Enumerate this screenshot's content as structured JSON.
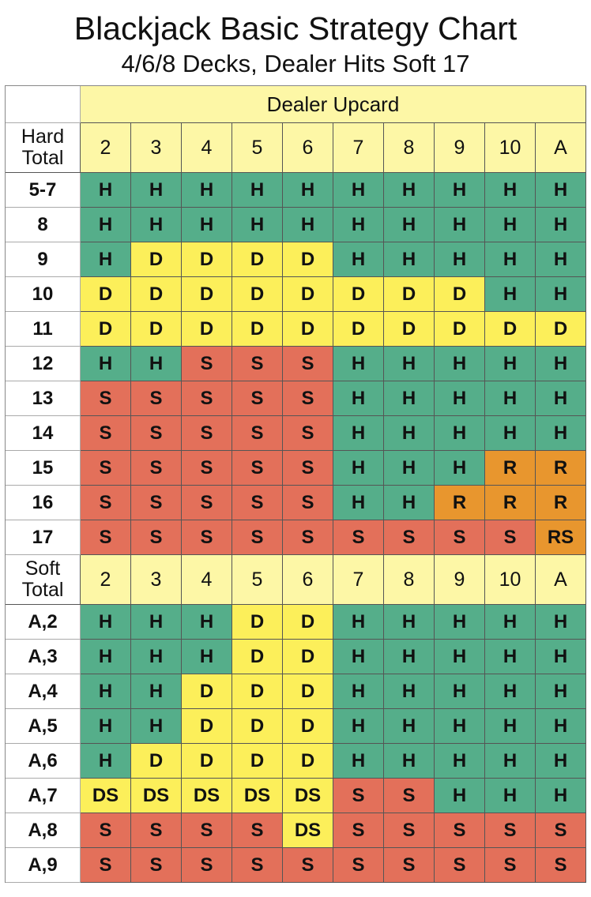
{
  "title": "Blackjack Basic Strategy Chart",
  "subtitle": "4/6/8 Decks, Dealer Hits Soft 17",
  "colors": {
    "H": "#55ae8a",
    "D": "#fcef5a",
    "S": "#e3705a",
    "R": "#e8962e",
    "RS": "#e8962e",
    "DS": "#fcef5a",
    "header": "#fdf7a6"
  },
  "chart_data": {
    "type": "table",
    "column_header": "Dealer Upcard",
    "upcards": [
      "2",
      "3",
      "4",
      "5",
      "6",
      "7",
      "8",
      "9",
      "10",
      "A"
    ],
    "sections": [
      {
        "label": "Hard Total",
        "rows": [
          {
            "hand": "5-7",
            "actions": [
              "H",
              "H",
              "H",
              "H",
              "H",
              "H",
              "H",
              "H",
              "H",
              "H"
            ]
          },
          {
            "hand": "8",
            "actions": [
              "H",
              "H",
              "H",
              "H",
              "H",
              "H",
              "H",
              "H",
              "H",
              "H"
            ]
          },
          {
            "hand": "9",
            "actions": [
              "H",
              "D",
              "D",
              "D",
              "D",
              "H",
              "H",
              "H",
              "H",
              "H"
            ]
          },
          {
            "hand": "10",
            "actions": [
              "D",
              "D",
              "D",
              "D",
              "D",
              "D",
              "D",
              "D",
              "H",
              "H"
            ]
          },
          {
            "hand": "11",
            "actions": [
              "D",
              "D",
              "D",
              "D",
              "D",
              "D",
              "D",
              "D",
              "D",
              "D"
            ]
          },
          {
            "hand": "12",
            "actions": [
              "H",
              "H",
              "S",
              "S",
              "S",
              "H",
              "H",
              "H",
              "H",
              "H"
            ]
          },
          {
            "hand": "13",
            "actions": [
              "S",
              "S",
              "S",
              "S",
              "S",
              "H",
              "H",
              "H",
              "H",
              "H"
            ]
          },
          {
            "hand": "14",
            "actions": [
              "S",
              "S",
              "S",
              "S",
              "S",
              "H",
              "H",
              "H",
              "H",
              "H"
            ]
          },
          {
            "hand": "15",
            "actions": [
              "S",
              "S",
              "S",
              "S",
              "S",
              "H",
              "H",
              "H",
              "R",
              "R"
            ]
          },
          {
            "hand": "16",
            "actions": [
              "S",
              "S",
              "S",
              "S",
              "S",
              "H",
              "H",
              "R",
              "R",
              "R"
            ]
          },
          {
            "hand": "17",
            "actions": [
              "S",
              "S",
              "S",
              "S",
              "S",
              "S",
              "S",
              "S",
              "S",
              "RS"
            ]
          }
        ]
      },
      {
        "label": "Soft Total",
        "rows": [
          {
            "hand": "A,2",
            "actions": [
              "H",
              "H",
              "H",
              "D",
              "D",
              "H",
              "H",
              "H",
              "H",
              "H"
            ]
          },
          {
            "hand": "A,3",
            "actions": [
              "H",
              "H",
              "H",
              "D",
              "D",
              "H",
              "H",
              "H",
              "H",
              "H"
            ]
          },
          {
            "hand": "A,4",
            "actions": [
              "H",
              "H",
              "D",
              "D",
              "D",
              "H",
              "H",
              "H",
              "H",
              "H"
            ]
          },
          {
            "hand": "A,5",
            "actions": [
              "H",
              "H",
              "D",
              "D",
              "D",
              "H",
              "H",
              "H",
              "H",
              "H"
            ]
          },
          {
            "hand": "A,6",
            "actions": [
              "H",
              "D",
              "D",
              "D",
              "D",
              "H",
              "H",
              "H",
              "H",
              "H"
            ]
          },
          {
            "hand": "A,7",
            "actions": [
              "DS",
              "DS",
              "DS",
              "DS",
              "DS",
              "S",
              "S",
              "H",
              "H",
              "H"
            ]
          },
          {
            "hand": "A,8",
            "actions": [
              "S",
              "S",
              "S",
              "S",
              "DS",
              "S",
              "S",
              "S",
              "S",
              "S"
            ]
          },
          {
            "hand": "A,9",
            "actions": [
              "S",
              "S",
              "S",
              "S",
              "S",
              "S",
              "S",
              "S",
              "S",
              "S"
            ]
          }
        ]
      }
    ]
  }
}
